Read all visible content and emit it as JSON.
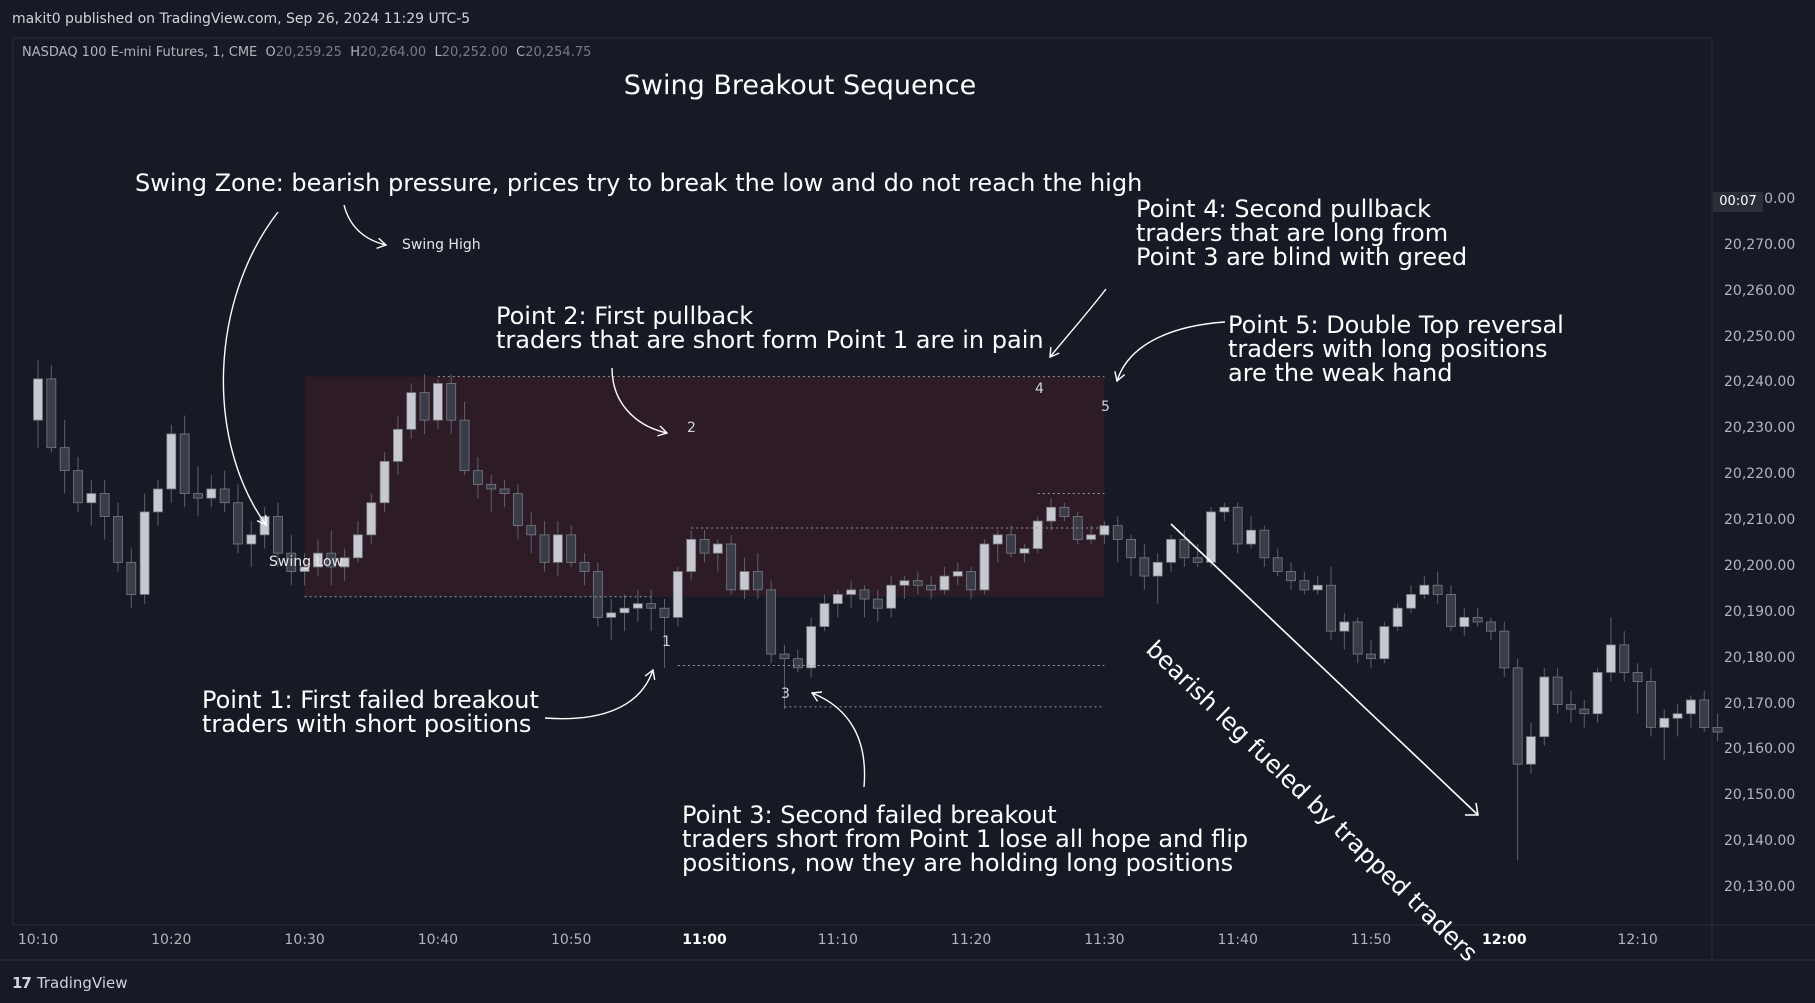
{
  "header": {
    "publisher_line": "makit0 published on TradingView.com, Sep 26, 2024 11:29 UTC-5"
  },
  "symbol": {
    "name": "NASDAQ 100 E-mini Futures, 1, CME",
    "open_label": "O",
    "open": "20,259.25",
    "high_label": "H",
    "high": "20,264.00",
    "low_label": "L",
    "low": "20,252.00",
    "close_label": "C",
    "close": "20,254.75"
  },
  "countdown": "00:07",
  "footer": {
    "brand": "TradingView",
    "logo_glyph": "17"
  },
  "colors": {
    "background": "#161a24",
    "candle_up": "#c8c9d0",
    "candle_down": "#3a3d47",
    "zone_fill": "#2e1c27",
    "annotation": "#ffffff"
  },
  "annotations": {
    "title": "Swing Breakout Sequence",
    "swing_zone": "Swing Zone: bearish pressure, prices try to break the low and do not reach the high",
    "swing_high": "Swing High",
    "swing_low": "Swing Low",
    "point1": "Point 1: First failed breakout\ntraders with short positions",
    "point2": "Point 2: First pullback\ntraders that are short form Point 1 are in pain",
    "point3": "Point 3: Second failed breakout\ntraders short from Point 1 lose all hope and flip\npositions, now they are holding long positions",
    "point4": "Point 4: Second pullback\ntraders that are long from\nPoint 3 are blind with greed",
    "point5": "Point 5: Double Top reversal\ntraders with long positions\nare the weak hand",
    "bearish_leg": "bearish leg fueled by trapped traders",
    "markers": [
      "1",
      "2",
      "3",
      "4",
      "5"
    ]
  },
  "chart_data": {
    "type": "candlestick",
    "timeframe": "1 minute",
    "y_axis": {
      "ylim": [
        20123,
        20284
      ],
      "ticks": [
        "20,280.00",
        "20,270.00",
        "20,260.00",
        "20,250.00",
        "20,240.00",
        "20,230.00",
        "20,220.00",
        "20,210.00",
        "20,200.00",
        "20,190.00",
        "20,180.00",
        "20,170.00",
        "20,160.00",
        "20,150.00",
        "20,140.00",
        "20,130.00"
      ]
    },
    "x_axis": {
      "xlim": [
        "10:10",
        "12:17"
      ],
      "ticks": [
        {
          "label": "10:10",
          "bold": false
        },
        {
          "label": "10:20",
          "bold": false
        },
        {
          "label": "10:30",
          "bold": false
        },
        {
          "label": "10:40",
          "bold": false
        },
        {
          "label": "10:50",
          "bold": false
        },
        {
          "label": "11:00",
          "bold": true
        },
        {
          "label": "11:10",
          "bold": false
        },
        {
          "label": "11:20",
          "bold": false
        },
        {
          "label": "11:30",
          "bold": false
        },
        {
          "label": "11:40",
          "bold": false
        },
        {
          "label": "11:50",
          "bold": false
        },
        {
          "label": "12:00",
          "bold": true
        },
        {
          "label": "12:10",
          "bold": false
        }
      ]
    },
    "swing_zone": {
      "start": "10:30",
      "end": "11:30",
      "high": 20241.5,
      "low": 20193.5
    },
    "levels": [
      {
        "name": "swing high",
        "price": 20241.5,
        "from": "10:40",
        "to": "11:30"
      },
      {
        "name": "swing low",
        "price": 20193.5,
        "from": "10:30",
        "to": "10:56"
      },
      {
        "name": "point 2 level",
        "price": 20208.5,
        "from": "10:59",
        "to": "11:30"
      },
      {
        "name": "point 1 level",
        "price": 20178.5,
        "from": "10:58",
        "to": "11:30"
      },
      {
        "name": "point 3 level",
        "price": 20169.5,
        "from": "11:06",
        "to": "11:30"
      },
      {
        "name": "point 4 level",
        "price": 20216.0,
        "from": "11:25",
        "to": "11:30"
      }
    ],
    "candles": [
      {
        "t": "10:10",
        "o": 20232,
        "h": 20245,
        "l": 20226,
        "c": 20241
      },
      {
        "t": "10:11",
        "o": 20241,
        "h": 20244,
        "l": 20225,
        "c": 20226
      },
      {
        "t": "10:12",
        "o": 20226,
        "h": 20232,
        "l": 20216,
        "c": 20221
      },
      {
        "t": "10:13",
        "o": 20221,
        "h": 20224,
        "l": 20212,
        "c": 20214
      },
      {
        "t": "10:14",
        "o": 20214,
        "h": 20219,
        "l": 20209,
        "c": 20216
      },
      {
        "t": "10:15",
        "o": 20216,
        "h": 20219,
        "l": 20206,
        "c": 20211
      },
      {
        "t": "10:16",
        "o": 20211,
        "h": 20214,
        "l": 20199,
        "c": 20201
      },
      {
        "t": "10:17",
        "o": 20201,
        "h": 20204,
        "l": 20191,
        "c": 20194
      },
      {
        "t": "10:18",
        "o": 20194,
        "h": 20216,
        "l": 20192,
        "c": 20212
      },
      {
        "t": "10:19",
        "o": 20212,
        "h": 20219,
        "l": 20209,
        "c": 20217
      },
      {
        "t": "10:20",
        "o": 20217,
        "h": 20231,
        "l": 20214,
        "c": 20229
      },
      {
        "t": "10:21",
        "o": 20229,
        "h": 20233,
        "l": 20213,
        "c": 20216
      },
      {
        "t": "10:22",
        "o": 20216,
        "h": 20222,
        "l": 20211,
        "c": 20215
      },
      {
        "t": "10:23",
        "o": 20215,
        "h": 20220,
        "l": 20213,
        "c": 20217
      },
      {
        "t": "10:24",
        "o": 20217,
        "h": 20221,
        "l": 20212,
        "c": 20214
      },
      {
        "t": "10:25",
        "o": 20214,
        "h": 20218,
        "l": 20203,
        "c": 20205
      },
      {
        "t": "10:26",
        "o": 20205,
        "h": 20210,
        "l": 20200,
        "c": 20207
      },
      {
        "t": "10:27",
        "o": 20207,
        "h": 20213,
        "l": 20204,
        "c": 20211
      },
      {
        "t": "10:28",
        "o": 20211,
        "h": 20214,
        "l": 20200,
        "c": 20203
      },
      {
        "t": "10:29",
        "o": 20203,
        "h": 20207,
        "l": 20196,
        "c": 20199
      },
      {
        "t": "10:30",
        "o": 20199,
        "h": 20203,
        "l": 20196,
        "c": 20200
      },
      {
        "t": "10:31",
        "o": 20200,
        "h": 20206,
        "l": 20198,
        "c": 20203
      },
      {
        "t": "10:32",
        "o": 20203,
        "h": 20208,
        "l": 20196,
        "c": 20200
      },
      {
        "t": "10:33",
        "o": 20200,
        "h": 20204,
        "l": 20197,
        "c": 20202
      },
      {
        "t": "10:34",
        "o": 20202,
        "h": 20210,
        "l": 20201,
        "c": 20207
      },
      {
        "t": "10:35",
        "o": 20207,
        "h": 20216,
        "l": 20205,
        "c": 20214
      },
      {
        "t": "10:36",
        "o": 20214,
        "h": 20225,
        "l": 20212,
        "c": 20223
      },
      {
        "t": "10:37",
        "o": 20223,
        "h": 20233,
        "l": 20220,
        "c": 20230
      },
      {
        "t": "10:38",
        "o": 20230,
        "h": 20240,
        "l": 20228,
        "c": 20238
      },
      {
        "t": "10:39",
        "o": 20238,
        "h": 20242,
        "l": 20229,
        "c": 20232
      },
      {
        "t": "10:40",
        "o": 20232,
        "h": 20241,
        "l": 20230,
        "c": 20240
      },
      {
        "t": "10:41",
        "o": 20240,
        "h": 20242,
        "l": 20229,
        "c": 20232
      },
      {
        "t": "10:42",
        "o": 20232,
        "h": 20236,
        "l": 20220,
        "c": 20221
      },
      {
        "t": "10:43",
        "o": 20221,
        "h": 20224,
        "l": 20215,
        "c": 20218
      },
      {
        "t": "10:44",
        "o": 20218,
        "h": 20220,
        "l": 20212,
        "c": 20217
      },
      {
        "t": "10:45",
        "o": 20217,
        "h": 20219,
        "l": 20213,
        "c": 20216
      },
      {
        "t": "10:46",
        "o": 20216,
        "h": 20218,
        "l": 20206,
        "c": 20209
      },
      {
        "t": "10:47",
        "o": 20209,
        "h": 20212,
        "l": 20203,
        "c": 20207
      },
      {
        "t": "10:48",
        "o": 20207,
        "h": 20210,
        "l": 20199,
        "c": 20201
      },
      {
        "t": "10:49",
        "o": 20201,
        "h": 20210,
        "l": 20198,
        "c": 20207
      },
      {
        "t": "10:50",
        "o": 20207,
        "h": 20209,
        "l": 20200,
        "c": 20201
      },
      {
        "t": "10:51",
        "o": 20201,
        "h": 20203,
        "l": 20196,
        "c": 20199
      },
      {
        "t": "10:52",
        "o": 20199,
        "h": 20201,
        "l": 20187,
        "c": 20189
      },
      {
        "t": "10:53",
        "o": 20189,
        "h": 20193,
        "l": 20184,
        "c": 20190
      },
      {
        "t": "10:54",
        "o": 20190,
        "h": 20194,
        "l": 20186,
        "c": 20191
      },
      {
        "t": "10:55",
        "o": 20191,
        "h": 20195,
        "l": 20188,
        "c": 20192
      },
      {
        "t": "10:56",
        "o": 20192,
        "h": 20195,
        "l": 20186,
        "c": 20191
      },
      {
        "t": "10:57",
        "o": 20191,
        "h": 20193,
        "l": 20178,
        "c": 20189
      },
      {
        "t": "10:58",
        "o": 20189,
        "h": 20200,
        "l": 20187,
        "c": 20199
      },
      {
        "t": "10:59",
        "o": 20199,
        "h": 20208,
        "l": 20197,
        "c": 20206
      },
      {
        "t": "11:00",
        "o": 20206,
        "h": 20208,
        "l": 20201,
        "c": 20203
      },
      {
        "t": "11:01",
        "o": 20203,
        "h": 20206,
        "l": 20199,
        "c": 20205
      },
      {
        "t": "11:02",
        "o": 20205,
        "h": 20207,
        "l": 20194,
        "c": 20195
      },
      {
        "t": "11:03",
        "o": 20195,
        "h": 20202,
        "l": 20193,
        "c": 20199
      },
      {
        "t": "11:04",
        "o": 20199,
        "h": 20203,
        "l": 20193,
        "c": 20195
      },
      {
        "t": "11:05",
        "o": 20195,
        "h": 20197,
        "l": 20179,
        "c": 20181
      },
      {
        "t": "11:06",
        "o": 20181,
        "h": 20183,
        "l": 20169,
        "c": 20180
      },
      {
        "t": "11:07",
        "o": 20180,
        "h": 20182,
        "l": 20177,
        "c": 20178
      },
      {
        "t": "11:08",
        "o": 20178,
        "h": 20189,
        "l": 20176,
        "c": 20187
      },
      {
        "t": "11:09",
        "o": 20187,
        "h": 20194,
        "l": 20186,
        "c": 20192
      },
      {
        "t": "11:10",
        "o": 20192,
        "h": 20195,
        "l": 20189,
        "c": 20194
      },
      {
        "t": "11:11",
        "o": 20194,
        "h": 20197,
        "l": 20191,
        "c": 20195
      },
      {
        "t": "11:12",
        "o": 20195,
        "h": 20196,
        "l": 20189,
        "c": 20193
      },
      {
        "t": "11:13",
        "o": 20193,
        "h": 20195,
        "l": 20188,
        "c": 20191
      },
      {
        "t": "11:14",
        "o": 20191,
        "h": 20198,
        "l": 20189,
        "c": 20196
      },
      {
        "t": "11:15",
        "o": 20196,
        "h": 20198,
        "l": 20193,
        "c": 20197
      },
      {
        "t": "11:16",
        "o": 20197,
        "h": 20199,
        "l": 20194,
        "c": 20196
      },
      {
        "t": "11:17",
        "o": 20196,
        "h": 20198,
        "l": 20193,
        "c": 20195
      },
      {
        "t": "11:18",
        "o": 20195,
        "h": 20200,
        "l": 20194,
        "c": 20198
      },
      {
        "t": "11:19",
        "o": 20198,
        "h": 20201,
        "l": 20196,
        "c": 20199
      },
      {
        "t": "11:20",
        "o": 20199,
        "h": 20200,
        "l": 20193,
        "c": 20195
      },
      {
        "t": "11:21",
        "o": 20195,
        "h": 20206,
        "l": 20194,
        "c": 20205
      },
      {
        "t": "11:22",
        "o": 20205,
        "h": 20208,
        "l": 20201,
        "c": 20207
      },
      {
        "t": "11:23",
        "o": 20207,
        "h": 20209,
        "l": 20202,
        "c": 20203
      },
      {
        "t": "11:24",
        "o": 20203,
        "h": 20205,
        "l": 20201,
        "c": 20204
      },
      {
        "t": "11:25",
        "o": 20204,
        "h": 20211,
        "l": 20203,
        "c": 20210
      },
      {
        "t": "11:26",
        "o": 20210,
        "h": 20215,
        "l": 20208,
        "c": 20213
      },
      {
        "t": "11:27",
        "o": 20213,
        "h": 20214,
        "l": 20210,
        "c": 20211
      },
      {
        "t": "11:28",
        "o": 20211,
        "h": 20212,
        "l": 20205,
        "c": 20206
      },
      {
        "t": "11:29",
        "o": 20206,
        "h": 20209,
        "l": 20205,
        "c": 20207
      },
      {
        "t": "11:30",
        "o": 20207,
        "h": 20210,
        "l": 20205,
        "c": 20209
      },
      {
        "t": "11:31",
        "o": 20209,
        "h": 20211,
        "l": 20201,
        "c": 20206
      },
      {
        "t": "11:32",
        "o": 20206,
        "h": 20207,
        "l": 20198,
        "c": 20202
      },
      {
        "t": "11:33",
        "o": 20202,
        "h": 20205,
        "l": 20195,
        "c": 20198
      },
      {
        "t": "11:34",
        "o": 20198,
        "h": 20203,
        "l": 20192,
        "c": 20201
      },
      {
        "t": "11:35",
        "o": 20201,
        "h": 20207,
        "l": 20199,
        "c": 20206
      },
      {
        "t": "11:36",
        "o": 20206,
        "h": 20208,
        "l": 20200,
        "c": 20202
      },
      {
        "t": "11:37",
        "o": 20202,
        "h": 20205,
        "l": 20200,
        "c": 20201
      },
      {
        "t": "11:38",
        "o": 20201,
        "h": 20213,
        "l": 20200,
        "c": 20212
      },
      {
        "t": "11:39",
        "o": 20212,
        "h": 20214,
        "l": 20210,
        "c": 20213
      },
      {
        "t": "11:40",
        "o": 20213,
        "h": 20214,
        "l": 20203,
        "c": 20205
      },
      {
        "t": "11:41",
        "o": 20205,
        "h": 20211,
        "l": 20204,
        "c": 20208
      },
      {
        "t": "11:42",
        "o": 20208,
        "h": 20209,
        "l": 20200,
        "c": 20202
      },
      {
        "t": "11:43",
        "o": 20202,
        "h": 20204,
        "l": 20198,
        "c": 20199
      },
      {
        "t": "11:44",
        "o": 20199,
        "h": 20201,
        "l": 20195,
        "c": 20197
      },
      {
        "t": "11:45",
        "o": 20197,
        "h": 20199,
        "l": 20194,
        "c": 20195
      },
      {
        "t": "11:46",
        "o": 20195,
        "h": 20198,
        "l": 20194,
        "c": 20196
      },
      {
        "t": "11:47",
        "o": 20196,
        "h": 20200,
        "l": 20184,
        "c": 20186
      },
      {
        "t": "11:48",
        "o": 20186,
        "h": 20190,
        "l": 20182,
        "c": 20188
      },
      {
        "t": "11:49",
        "o": 20188,
        "h": 20189,
        "l": 20179,
        "c": 20181
      },
      {
        "t": "11:50",
        "o": 20181,
        "h": 20184,
        "l": 20178,
        "c": 20180
      },
      {
        "t": "11:51",
        "o": 20180,
        "h": 20188,
        "l": 20179,
        "c": 20187
      },
      {
        "t": "11:52",
        "o": 20187,
        "h": 20192,
        "l": 20186,
        "c": 20191
      },
      {
        "t": "11:53",
        "o": 20191,
        "h": 20196,
        "l": 20190,
        "c": 20194
      },
      {
        "t": "11:54",
        "o": 20194,
        "h": 20198,
        "l": 20193,
        "c": 20196
      },
      {
        "t": "11:55",
        "o": 20196,
        "h": 20199,
        "l": 20192,
        "c": 20194
      },
      {
        "t": "11:56",
        "o": 20194,
        "h": 20196,
        "l": 20186,
        "c": 20187
      },
      {
        "t": "11:57",
        "o": 20187,
        "h": 20191,
        "l": 20185,
        "c": 20189
      },
      {
        "t": "11:58",
        "o": 20189,
        "h": 20191,
        "l": 20187,
        "c": 20188
      },
      {
        "t": "11:59",
        "o": 20188,
        "h": 20189,
        "l": 20184,
        "c": 20186
      },
      {
        "t": "12:00",
        "o": 20186,
        "h": 20188,
        "l": 20176,
        "c": 20178
      },
      {
        "t": "12:01",
        "o": 20178,
        "h": 20180,
        "l": 20136,
        "c": 20157
      },
      {
        "t": "12:02",
        "o": 20157,
        "h": 20166,
        "l": 20155,
        "c": 20163
      },
      {
        "t": "12:03",
        "o": 20163,
        "h": 20178,
        "l": 20161,
        "c": 20176
      },
      {
        "t": "12:04",
        "o": 20176,
        "h": 20178,
        "l": 20168,
        "c": 20170
      },
      {
        "t": "12:05",
        "o": 20170,
        "h": 20173,
        "l": 20166,
        "c": 20169
      },
      {
        "t": "12:06",
        "o": 20169,
        "h": 20171,
        "l": 20165,
        "c": 20168
      },
      {
        "t": "12:07",
        "o": 20168,
        "h": 20178,
        "l": 20166,
        "c": 20177
      },
      {
        "t": "12:08",
        "o": 20177,
        "h": 20189,
        "l": 20175,
        "c": 20183
      },
      {
        "t": "12:09",
        "o": 20183,
        "h": 20186,
        "l": 20175,
        "c": 20177
      },
      {
        "t": "12:10",
        "o": 20177,
        "h": 20179,
        "l": 20168,
        "c": 20175
      },
      {
        "t": "12:11",
        "o": 20175,
        "h": 20178,
        "l": 20163,
        "c": 20165
      },
      {
        "t": "12:12",
        "o": 20165,
        "h": 20169,
        "l": 20158,
        "c": 20167
      },
      {
        "t": "12:13",
        "o": 20167,
        "h": 20170,
        "l": 20163,
        "c": 20168
      },
      {
        "t": "12:14",
        "o": 20168,
        "h": 20172,
        "l": 20165,
        "c": 20171
      },
      {
        "t": "12:15",
        "o": 20171,
        "h": 20173,
        "l": 20164,
        "c": 20165
      },
      {
        "t": "12:16",
        "o": 20165,
        "h": 20168,
        "l": 20162,
        "c": 20164
      }
    ]
  }
}
